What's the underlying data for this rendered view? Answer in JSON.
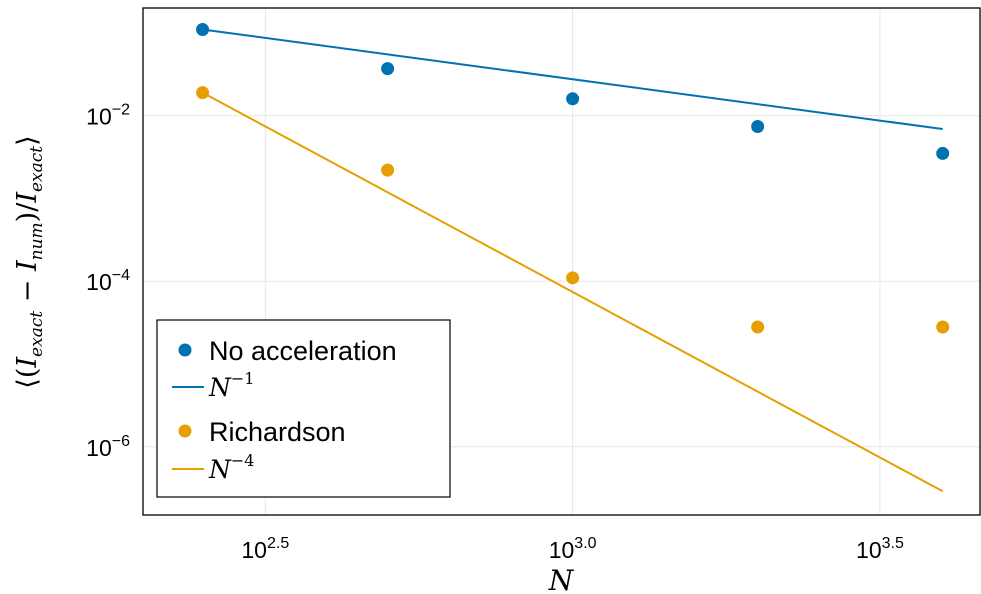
{
  "chart_data": {
    "type": "scatter",
    "title": "",
    "xlabel": "N",
    "ylabel": "⟨(I_exact − I_num)/I_exact⟩",
    "ylabel_parts": {
      "open": "⟨(",
      "I1": "I",
      "s1": "exact",
      "minus": " − ",
      "I2": "I",
      "s2": "num",
      "mid": ")/",
      "I3": "I",
      "s3": "exact",
      "close": "⟩"
    },
    "x_scale": "log10",
    "y_scale": "log10",
    "xlim": [
      200,
      4600
    ],
    "ylim": [
      1.5e-07,
      0.2
    ],
    "x_ticks": [
      {
        "value": 316.23,
        "base": "10",
        "exp": "2.5"
      },
      {
        "value": 1000,
        "base": "10",
        "exp": "3.0"
      },
      {
        "value": 3162.3,
        "base": "10",
        "exp": "3.5"
      }
    ],
    "y_ticks": [
      {
        "value": 0.01,
        "base": "10",
        "exp": "−2"
      },
      {
        "value": 0.0001,
        "base": "10",
        "exp": "−4"
      },
      {
        "value": 1e-06,
        "base": "10",
        "exp": "−6"
      }
    ],
    "grid": true,
    "legend_position": "bottom-left",
    "x": [
      250,
      500,
      1000,
      2000,
      4000
    ],
    "series": [
      {
        "name": "No acceleration",
        "kind": "scatter",
        "color": "#0072b2",
        "values": [
          0.11,
          0.037,
          0.016,
          0.0074,
          0.0035
        ]
      },
      {
        "name": "Richardson",
        "kind": "scatter",
        "color": "#e69f00",
        "values": [
          0.019,
          0.0022,
          0.00011,
          2.8e-05,
          2.8e-05
        ]
      }
    ],
    "fits": [
      {
        "name_base": "N",
        "name_exp": "−1",
        "kind": "line",
        "color": "#0072b2",
        "x": [
          250,
          4000
        ],
        "values": [
          0.11,
          0.0069
        ]
      },
      {
        "name_base": "N",
        "name_exp": "−4",
        "kind": "line",
        "color": "#e69f00",
        "x": [
          250,
          4000
        ],
        "values": [
          0.019,
          2.9e-07
        ]
      }
    ]
  }
}
